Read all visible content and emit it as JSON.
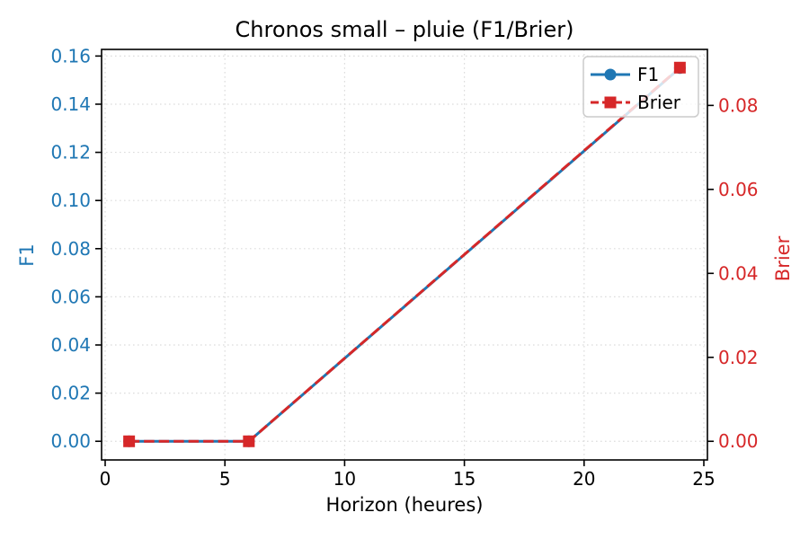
{
  "chart_data": {
    "type": "line",
    "title": "Chronos small – pluie (F1/Brier)",
    "xlabel": "Horizon (heures)",
    "ylabel_left": "F1",
    "ylabel_right": "Brier",
    "x": [
      1,
      6,
      24
    ],
    "series": [
      {
        "name": "F1",
        "axis": "left",
        "color": "#1f77b4",
        "linestyle": "solid",
        "marker": "circle",
        "values": [
          0.0,
          0.0,
          0.155
        ]
      },
      {
        "name": "Brier",
        "axis": "right",
        "color": "#d62728",
        "linestyle": "dashed",
        "marker": "square",
        "values": [
          0.0,
          0.0,
          0.089
        ]
      }
    ],
    "x_ticks": [
      0,
      5,
      10,
      15,
      20,
      25
    ],
    "xlim": [
      -0.15,
      25.15
    ],
    "left_axis": {
      "ticks": [
        0.0,
        0.02,
        0.04,
        0.06,
        0.08,
        0.1,
        0.12,
        0.14,
        0.16
      ],
      "lim": [
        -0.00775,
        0.16275
      ],
      "color": "#1f77b4"
    },
    "right_axis": {
      "ticks": [
        0.0,
        0.02,
        0.04,
        0.06,
        0.08
      ],
      "lim": [
        -0.00444,
        0.09334
      ],
      "color": "#d62728"
    },
    "grid": {
      "visible": true,
      "color": "#dcdcdc",
      "style": "dotted"
    },
    "legend": {
      "position": "upper right",
      "items": [
        "F1",
        "Brier"
      ]
    },
    "frame_color": "#000000",
    "tick_label_color_x": "#000000",
    "background": "#ffffff"
  }
}
